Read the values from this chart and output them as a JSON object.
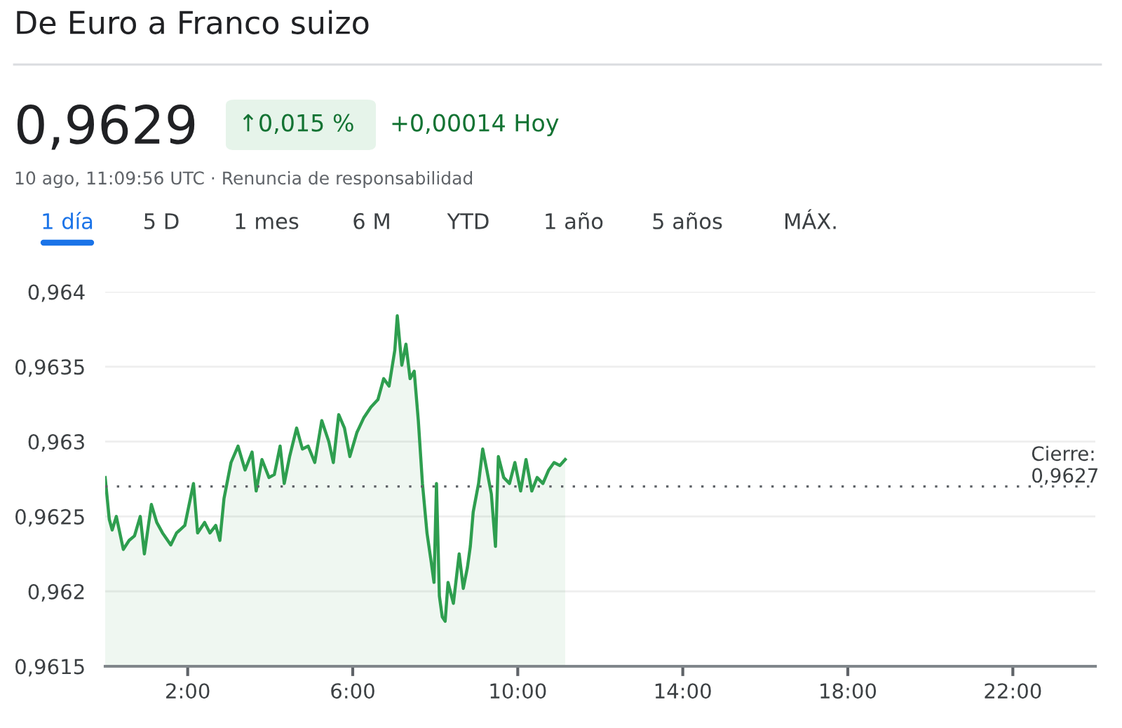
{
  "chart_data": {
    "type": "area",
    "title": "De Euro a Franco suizo",
    "annotations": [
      "0,9629",
      "↑0,015 %",
      "+0,00014 Hoy",
      "10 ago, 11:09:56 UTC · Renuncia de responsabilidad",
      "1 día",
      "5 D",
      "1 mes",
      "6 M",
      "YTD",
      "1 año",
      "5 años",
      "MÁX."
    ],
    "series": [
      {
        "color": "#2e9e4f",
        "x": [
          0,
          0.1,
          0.17,
          0.27,
          0.44,
          0.58,
          0.71,
          0.85,
          0.95,
          1.12,
          1.25,
          1.39,
          1.59,
          1.73,
          1.93,
          2.14,
          2.24,
          2.41,
          2.54,
          2.68,
          2.78,
          2.88,
          3.05,
          3.22,
          3.39,
          3.56,
          3.66,
          3.8,
          3.97,
          4.1,
          4.24,
          4.34,
          4.47,
          4.64,
          4.78,
          4.92,
          5.08,
          5.25,
          5.42,
          5.53,
          5.66,
          5.8,
          5.93,
          6.1,
          6.27,
          6.44,
          6.61,
          6.75,
          6.88,
          7.02,
          7.08,
          7.19,
          7.29,
          7.39,
          7.49,
          7.59,
          7.69,
          7.8,
          7.9,
          7.97,
          8.03,
          8.1,
          8.17,
          8.24,
          8.31,
          8.44,
          8.58,
          8.68,
          8.78,
          8.85,
          8.92,
          9.05,
          9.15,
          9.25,
          9.36,
          9.46,
          9.53,
          9.66,
          9.8,
          9.93,
          10.07,
          10.2,
          10.34,
          10.47,
          10.61,
          10.75,
          10.88,
          11.02,
          11.15
        ],
        "values": [
          0.96276,
          0.96248,
          0.96241,
          0.9625,
          0.96228,
          0.96234,
          0.96237,
          0.9625,
          0.96225,
          0.96258,
          0.96246,
          0.96239,
          0.96231,
          0.96239,
          0.96244,
          0.96272,
          0.96239,
          0.96246,
          0.96239,
          0.96244,
          0.96234,
          0.96262,
          0.96286,
          0.96297,
          0.96281,
          0.96293,
          0.96267,
          0.96288,
          0.96276,
          0.96278,
          0.96297,
          0.96272,
          0.9629,
          0.96309,
          0.96295,
          0.96297,
          0.96286,
          0.96314,
          0.963,
          0.96286,
          0.96318,
          0.96309,
          0.9629,
          0.96306,
          0.96316,
          0.96323,
          0.96328,
          0.96342,
          0.96337,
          0.96361,
          0.96384,
          0.96351,
          0.96365,
          0.96342,
          0.96347,
          0.96314,
          0.96272,
          0.96239,
          0.9622,
          0.96206,
          0.96272,
          0.96197,
          0.96183,
          0.9618,
          0.96206,
          0.96192,
          0.96225,
          0.96202,
          0.96216,
          0.9623,
          0.96253,
          0.96272,
          0.96295,
          0.96281,
          0.96265,
          0.9623,
          0.9629,
          0.96276,
          0.96272,
          0.96286,
          0.96267,
          0.96288,
          0.96267,
          0.96276,
          0.96272,
          0.96281,
          0.96286,
          0.96284,
          0.96288
        ]
      }
    ],
    "xlim": [
      0,
      24
    ],
    "xticks": [
      {
        "value": 2,
        "label": "2:00"
      },
      {
        "value": 6,
        "label": "6:00"
      },
      {
        "value": 10,
        "label": "10:00"
      },
      {
        "value": 14,
        "label": "14:00"
      },
      {
        "value": 18,
        "label": "18:00"
      },
      {
        "value": 22,
        "label": "22:00"
      }
    ],
    "ylim": [
      0.9615,
      0.964
    ],
    "yticks": [
      {
        "value": 0.9615,
        "label": "0,9615"
      },
      {
        "value": 0.962,
        "label": "0,962"
      },
      {
        "value": 0.9625,
        "label": "0,9625"
      },
      {
        "value": 0.963,
        "label": "0,963"
      },
      {
        "value": 0.9635,
        "label": "0,9635"
      },
      {
        "value": 0.964,
        "label": "0,964"
      }
    ],
    "ref_lines": [
      {
        "axis": "y",
        "value": 0.9627,
        "label": "Cierre:\n0,9627",
        "color": "#5f6368",
        "line_style": "dotted"
      }
    ],
    "grid": "y",
    "legend": false
  }
}
